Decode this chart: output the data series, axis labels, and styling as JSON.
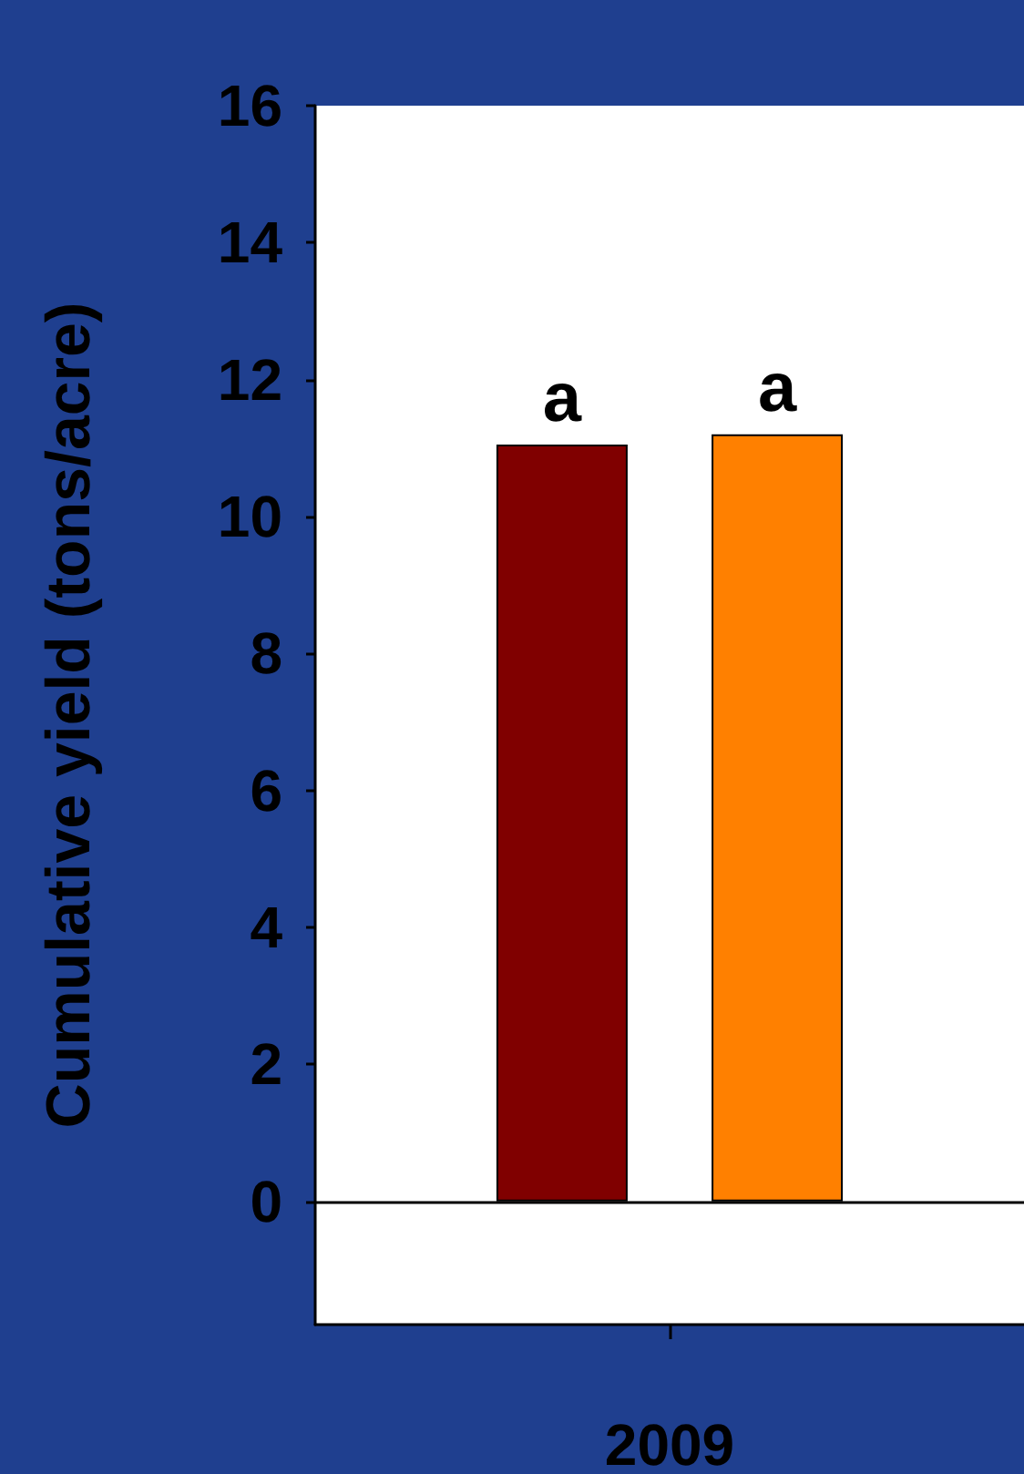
{
  "chart_data": {
    "type": "bar",
    "ylabel": "Cumulative yield (tons/acre)",
    "categories": [
      "2009"
    ],
    "series": [
      {
        "color": "#800000",
        "values": [
          11.05
        ],
        "value_labels": [
          "a"
        ]
      },
      {
        "color": "#ff8000",
        "values": [
          11.2
        ],
        "value_labels": [
          "a"
        ]
      }
    ],
    "ylim": [
      -1.8,
      16
    ],
    "yticks": [
      0,
      2,
      4,
      6,
      8,
      10,
      12,
      14,
      16
    ],
    "grid": false,
    "ref_lines": [
      {
        "axis": "y",
        "value": 0,
        "color": "#000000"
      }
    ]
  }
}
